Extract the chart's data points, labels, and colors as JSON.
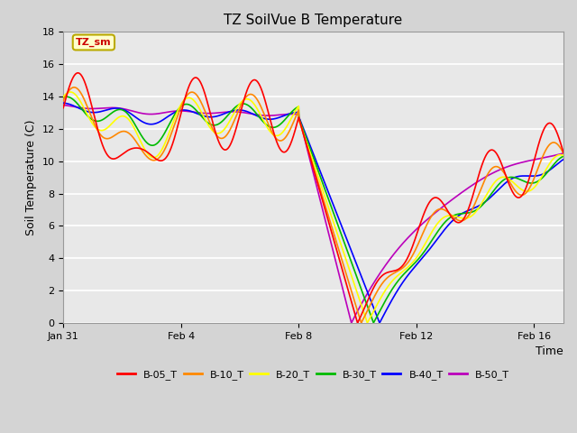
{
  "title": "TZ SoilVue B Temperature",
  "xlabel": "Time",
  "ylabel": "Soil Temperature (C)",
  "ylim": [
    0,
    18
  ],
  "yticks": [
    0,
    2,
    4,
    6,
    8,
    10,
    12,
    14,
    16,
    18
  ],
  "xtick_labels": [
    "Jan 31",
    "Feb 4",
    "Feb 8",
    "Feb 12",
    "Feb 16"
  ],
  "tick_positions": [
    0,
    96,
    192,
    288,
    384
  ],
  "xlim": [
    0,
    408
  ],
  "annotation_label": "TZ_sm",
  "annotation_box_color": "#FFFFCC",
  "annotation_box_edge": "#BBAA00",
  "series_colors": {
    "B-05_T": "#FF0000",
    "B-10_T": "#FF8800",
    "B-20_T": "#FFFF00",
    "B-30_T": "#00BB00",
    "B-40_T": "#0000FF",
    "B-50_T": "#BB00BB"
  },
  "fig_bg": "#D4D4D4",
  "plot_bg": "#E8E8E8",
  "grid_color": "#FFFFFF",
  "title_fontsize": 11,
  "tick_fontsize": 8,
  "label_fontsize": 9,
  "legend_fontsize": 8
}
